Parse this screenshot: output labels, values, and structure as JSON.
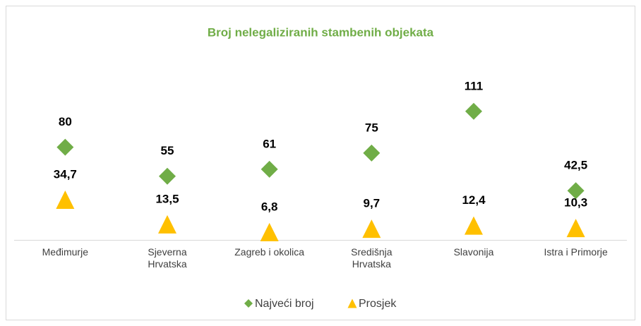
{
  "chart_data": {
    "type": "marker",
    "title": "Broj nelegaliziranih stambenih objekata",
    "categories": [
      "Međimurje",
      "Sjeverna Hrvatska",
      "Zagreb i okolica",
      "Središnja Hrvatska",
      "Slavonija",
      "Istra i Primorje"
    ],
    "series": [
      {
        "name": "Najveći broj",
        "color": "#70ad47",
        "marker": "diamond",
        "values": [
          80,
          55,
          61,
          75,
          111,
          42.5
        ],
        "value_labels": [
          "80",
          "55",
          "61",
          "75",
          "111",
          "42,5"
        ]
      },
      {
        "name": "Prosjek",
        "color": "#ffc000",
        "marker": "triangle",
        "values": [
          34.7,
          13.5,
          6.8,
          9.7,
          12.4,
          10.3
        ],
        "value_labels": [
          "34,7",
          "13,5",
          "6,8",
          "9,7",
          "12,4",
          "10,3"
        ]
      }
    ],
    "ylim": [
      0,
      120
    ],
    "legend": "bottom"
  }
}
